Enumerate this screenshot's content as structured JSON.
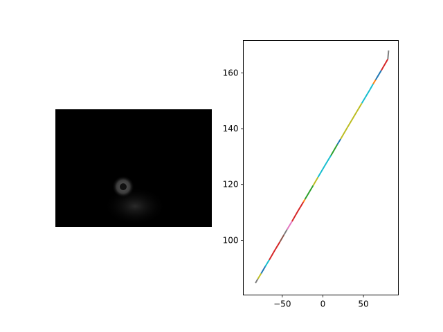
{
  "image_panel": {
    "description_icon": "dark-grayscale-image",
    "background": "#000000"
  },
  "chart_data": {
    "type": "line",
    "title": "",
    "xlabel": "",
    "ylabel": "",
    "xlim": [
      -98,
      93
    ],
    "ylim": [
      80.4,
      171.6
    ],
    "xticks": [
      -50,
      0,
      50
    ],
    "yticks": [
      100,
      120,
      140,
      160
    ],
    "xtick_labels": [
      "−50",
      "0",
      "50"
    ],
    "ytick_labels": [
      "100",
      "120",
      "140",
      "160"
    ],
    "grid": false,
    "legend": "none",
    "series": [
      {
        "color": "#7f7f7f",
        "x": [
          -83,
          -80
        ],
        "y": [
          84.7,
          86.2
        ]
      },
      {
        "color": "#bcbd22",
        "x": [
          -80,
          -76
        ],
        "y": [
          86.2,
          88.1
        ]
      },
      {
        "color": "#1f77b4",
        "x": [
          -76,
          -71
        ],
        "y": [
          88.1,
          90.6
        ]
      },
      {
        "color": "#17becf",
        "x": [
          -71,
          -66
        ],
        "y": [
          90.6,
          93.0
        ]
      },
      {
        "color": "#d62728",
        "x": [
          -66,
          -59
        ],
        "y": [
          93.0,
          96.5
        ]
      },
      {
        "color": "#d62728",
        "x": [
          -59,
          -53
        ],
        "y": [
          96.5,
          99.4
        ]
      },
      {
        "color": "#8c564b",
        "x": [
          -53,
          -48
        ],
        "y": [
          99.4,
          101.9
        ]
      },
      {
        "color": "#7f7f7f",
        "x": [
          -48,
          -44
        ],
        "y": [
          101.9,
          103.9
        ]
      },
      {
        "color": "#e377c2",
        "x": [
          -44,
          -38
        ],
        "y": [
          103.9,
          106.8
        ]
      },
      {
        "color": "#d62728",
        "x": [
          -38,
          -30
        ],
        "y": [
          106.8,
          110.8
        ]
      },
      {
        "color": "#d62728",
        "x": [
          -30,
          -24
        ],
        "y": [
          110.8,
          113.7
        ]
      },
      {
        "color": "#ff7f0e",
        "x": [
          -24,
          -22
        ],
        "y": [
          113.7,
          114.7
        ]
      },
      {
        "color": "#2ca02c",
        "x": [
          -22,
          -12
        ],
        "y": [
          114.7,
          119.6
        ]
      },
      {
        "color": "#bcbd22",
        "x": [
          -12,
          -6
        ],
        "y": [
          119.6,
          122.6
        ]
      },
      {
        "color": "#17becf",
        "x": [
          -6,
          4
        ],
        "y": [
          122.6,
          127.5
        ]
      },
      {
        "color": "#17becf",
        "x": [
          4,
          10
        ],
        "y": [
          127.5,
          130.4
        ]
      },
      {
        "color": "#2ca02c",
        "x": [
          10,
          18
        ],
        "y": [
          130.4,
          134.4
        ]
      },
      {
        "color": "#1f77b4",
        "x": [
          18,
          22
        ],
        "y": [
          134.4,
          136.3
        ]
      },
      {
        "color": "#bcbd22",
        "x": [
          22,
          30
        ],
        "y": [
          136.3,
          140.3
        ]
      },
      {
        "color": "#bcbd22",
        "x": [
          30,
          42
        ],
        "y": [
          140.3,
          146.2
        ]
      },
      {
        "color": "#bcbd22",
        "x": [
          42,
          48
        ],
        "y": [
          146.2,
          149.1
        ]
      },
      {
        "color": "#17becf",
        "x": [
          48,
          58
        ],
        "y": [
          149.1,
          154.0
        ]
      },
      {
        "color": "#17becf",
        "x": [
          58,
          62
        ],
        "y": [
          154.0,
          156.0
        ]
      },
      {
        "color": "#ff7f0e",
        "x": [
          62,
          65
        ],
        "y": [
          156.0,
          157.5
        ]
      },
      {
        "color": "#1f77b4",
        "x": [
          65,
          72
        ],
        "y": [
          157.5,
          160.9
        ]
      },
      {
        "color": "#d62728",
        "x": [
          72,
          80
        ],
        "y": [
          160.9,
          164.9
        ]
      },
      {
        "color": "#7f7f7f",
        "x": [
          80,
          81
        ],
        "y": [
          164.9,
          168.0
        ]
      }
    ]
  }
}
